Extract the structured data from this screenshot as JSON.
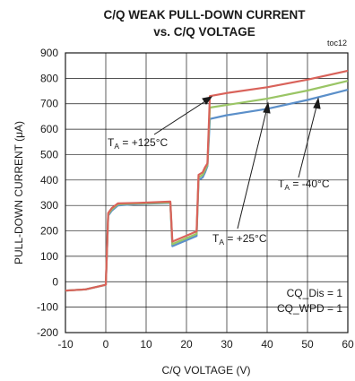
{
  "chart_data": {
    "type": "line",
    "title": "C/Q WEAK PULL-DOWN CURRENT",
    "subtitle": "vs. C/Q VOLTAGE",
    "figure_id": "toc12",
    "xlabel": "C/Q VOLTAGE (V)",
    "ylabel": "PULL-DOWN CURRENT (μA)",
    "xlim": [
      -10,
      60
    ],
    "ylim": [
      -200,
      900
    ],
    "xticks": [
      -10,
      0,
      10,
      20,
      30,
      40,
      50,
      60
    ],
    "yticks": [
      -200,
      -100,
      0,
      100,
      200,
      300,
      400,
      500,
      600,
      700,
      800,
      900
    ],
    "grid": true,
    "series": [
      {
        "color": "#5b8fc9",
        "points": [
          [
            -10,
            -35
          ],
          [
            -5,
            -30
          ],
          [
            0,
            -12
          ],
          [
            0.6,
            260
          ],
          [
            1.5,
            280
          ],
          [
            3,
            300
          ],
          [
            8,
            306
          ],
          [
            16,
            310
          ],
          [
            16.5,
            140
          ],
          [
            22.5,
            180
          ],
          [
            23,
            400
          ],
          [
            24,
            410
          ],
          [
            24.6,
            430
          ],
          [
            25.2,
            455
          ],
          [
            25.8,
            640
          ],
          [
            30,
            655
          ],
          [
            40,
            680
          ],
          [
            50,
            715
          ],
          [
            60,
            755
          ]
        ]
      },
      {
        "color": "#9ac565",
        "points": [
          [
            -10,
            -35
          ],
          [
            -5,
            -30
          ],
          [
            0,
            -12
          ],
          [
            0.6,
            265
          ],
          [
            1.5,
            285
          ],
          [
            3,
            305
          ],
          [
            8,
            308
          ],
          [
            16,
            312
          ],
          [
            16.5,
            148
          ],
          [
            22.5,
            188
          ],
          [
            23,
            410
          ],
          [
            24,
            420
          ],
          [
            24.6,
            440
          ],
          [
            25.2,
            460
          ],
          [
            25.8,
            685
          ],
          [
            30,
            695
          ],
          [
            40,
            720
          ],
          [
            50,
            752
          ],
          [
            60,
            790
          ]
        ]
      },
      {
        "color": "#d9625a",
        "points": [
          [
            -10,
            -35
          ],
          [
            -5,
            -30
          ],
          [
            0,
            -12
          ],
          [
            0.6,
            270
          ],
          [
            1.5,
            290
          ],
          [
            3,
            308
          ],
          [
            8,
            310
          ],
          [
            16,
            315
          ],
          [
            16.5,
            158
          ],
          [
            22.5,
            198
          ],
          [
            23,
            420
          ],
          [
            24,
            430
          ],
          [
            24.6,
            450
          ],
          [
            25.2,
            465
          ],
          [
            25.8,
            730
          ],
          [
            30,
            742
          ],
          [
            40,
            765
          ],
          [
            50,
            795
          ],
          [
            60,
            830
          ]
        ]
      }
    ],
    "annotations": [
      {
        "prefix": "T",
        "sub": "A",
        "suffix": " = +125°C"
      },
      {
        "prefix": "T",
        "sub": "A",
        "suffix": " = +25°C"
      },
      {
        "prefix": "T",
        "sub": "A",
        "suffix": " = -40°C"
      }
    ],
    "legend_note": [
      "CQ_Dis = 1",
      "CQ_WPD = 1"
    ]
  }
}
